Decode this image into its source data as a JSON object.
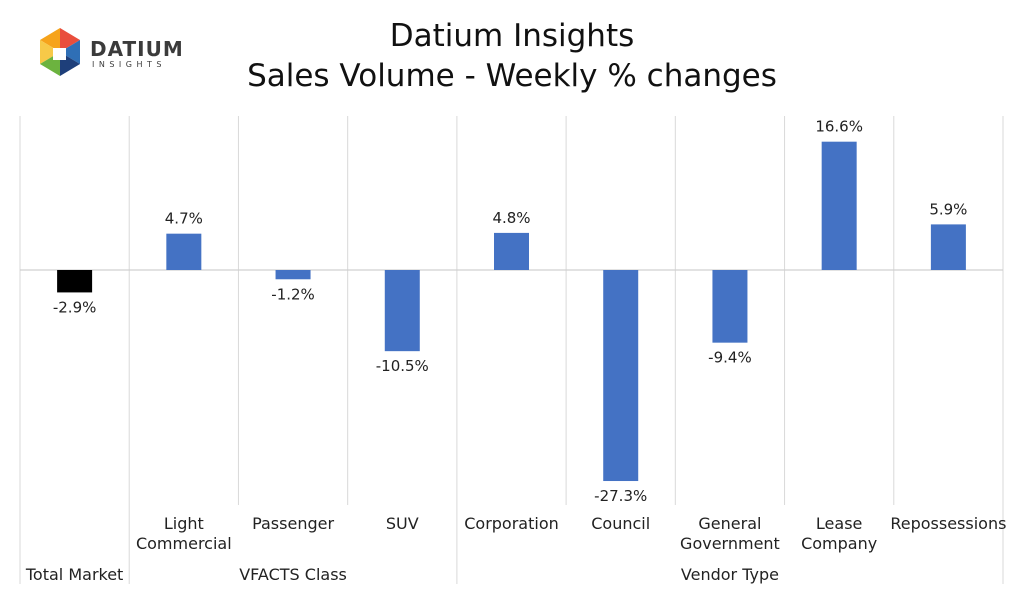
{
  "logo": {
    "name": "DATIUM",
    "subtext": "INSIGHTS"
  },
  "chart_data": {
    "type": "bar",
    "title": "Datium Insights",
    "subtitle": "Sales Volume - Weekly % changes",
    "categories": [
      [
        "Total Market"
      ],
      [
        "Light",
        "Commercial"
      ],
      [
        "Passenger"
      ],
      [
        "SUV"
      ],
      [
        "Corporation"
      ],
      [
        "Council"
      ],
      [
        "General",
        "Government"
      ],
      [
        "Lease",
        "Company"
      ],
      [
        "Repossessions"
      ]
    ],
    "groups": [
      {
        "label": "Total Market",
        "start": 0,
        "end": 0
      },
      {
        "label": "VFACTS Class",
        "start": 1,
        "end": 3
      },
      {
        "label": "Vendor Type",
        "start": 4,
        "end": 8
      }
    ],
    "values": [
      -2.9,
      4.7,
      -1.2,
      -10.5,
      4.8,
      -27.3,
      -9.4,
      16.6,
      5.9
    ],
    "data_labels": [
      "-2.9%",
      "4.7%",
      "-1.2%",
      "-10.5%",
      "4.8%",
      "-27.3%",
      "-9.4%",
      "16.6%",
      "5.9%"
    ],
    "bar_colors": [
      "#000000",
      "#4472C4",
      "#4472C4",
      "#4472C4",
      "#4472C4",
      "#4472C4",
      "#4472C4",
      "#4472C4",
      "#4472C4"
    ],
    "ylim": [
      -30,
      20
    ],
    "grid": false,
    "legend": "none"
  }
}
